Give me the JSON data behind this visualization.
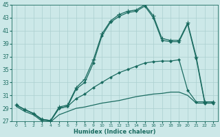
{
  "xlabel": "Humidex (Indice chaleur)",
  "xlim": [
    -0.5,
    23.5
  ],
  "ylim": [
    27,
    45
  ],
  "yticks": [
    27,
    29,
    31,
    33,
    35,
    37,
    39,
    41,
    43,
    45
  ],
  "xticks": [
    0,
    1,
    2,
    3,
    4,
    5,
    6,
    7,
    8,
    9,
    10,
    11,
    12,
    13,
    14,
    15,
    16,
    17,
    18,
    19,
    20,
    21,
    22,
    23
  ],
  "bg_color": "#cce8e8",
  "line_color": "#1a6b60",
  "grid_color": "#aacfcf",
  "series": [
    {
      "x": [
        0,
        1,
        2,
        3,
        4,
        5,
        6,
        7,
        8,
        9,
        10,
        11,
        12,
        13,
        14,
        15,
        16,
        17,
        18,
        19,
        20,
        21,
        22,
        23
      ],
      "y": [
        29.5,
        28.8,
        28.2,
        27.3,
        27.1,
        29.2,
        29.5,
        32.2,
        33.5,
        36.5,
        40.5,
        42.5,
        43.5,
        44.0,
        44.2,
        45.0,
        43.3,
        39.8,
        39.5,
        39.5,
        42.2,
        37.0,
        30.0,
        30.0
      ],
      "marker": "+",
      "markersize": 4,
      "lw": 0.9
    },
    {
      "x": [
        0,
        1,
        2,
        3,
        4,
        5,
        6,
        7,
        8,
        9,
        10,
        11,
        12,
        13,
        14,
        15,
        16,
        17,
        18,
        19,
        20,
        21,
        22,
        23
      ],
      "y": [
        29.5,
        28.8,
        28.2,
        27.3,
        27.1,
        29.0,
        29.3,
        32.0,
        33.0,
        36.0,
        40.2,
        42.3,
        43.2,
        43.8,
        44.0,
        44.8,
        43.0,
        39.5,
        39.3,
        39.3,
        42.0,
        36.7,
        29.8,
        29.8
      ],
      "marker": "D",
      "markersize": 2.5,
      "lw": 0.9
    },
    {
      "x": [
        0,
        1,
        2,
        3,
        4,
        5,
        6,
        7,
        8,
        9,
        10,
        11,
        12,
        13,
        14,
        15,
        16,
        17,
        18,
        19,
        20,
        21,
        22,
        23
      ],
      "y": [
        29.5,
        28.8,
        28.2,
        27.2,
        27.0,
        29.0,
        29.3,
        30.5,
        31.2,
        32.2,
        33.0,
        33.8,
        34.5,
        35.0,
        35.5,
        36.0,
        36.2,
        36.3,
        36.3,
        36.5,
        31.8,
        30.0,
        30.0,
        30.0
      ],
      "marker": "D",
      "markersize": 2.5,
      "lw": 0.9
    },
    {
      "x": [
        0,
        1,
        2,
        3,
        4,
        5,
        6,
        7,
        8,
        9,
        10,
        11,
        12,
        13,
        14,
        15,
        16,
        17,
        18,
        19,
        20,
        21,
        22,
        23
      ],
      "y": [
        29.3,
        28.5,
        28.0,
        27.0,
        26.9,
        28.0,
        28.5,
        29.0,
        29.2,
        29.5,
        29.8,
        30.0,
        30.2,
        30.5,
        30.8,
        31.0,
        31.2,
        31.3,
        31.5,
        31.5,
        31.0,
        29.8,
        29.8,
        29.8
      ],
      "marker": null,
      "markersize": 0,
      "lw": 0.9
    }
  ]
}
